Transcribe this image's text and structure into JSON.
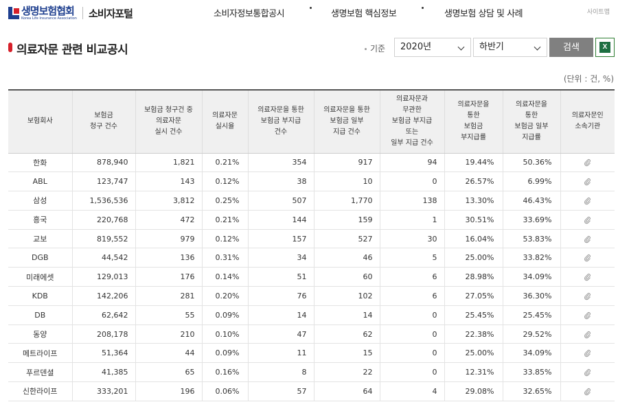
{
  "header": {
    "logo_ko": "생명보험협회",
    "logo_en": "Korea Life Insurance Association",
    "portal": "소비자포털",
    "nav": [
      "소비자정보통합공시",
      "생명보험 핵심정보",
      "생명보험 상담 및 사례"
    ],
    "sitemap": "사이트맵"
  },
  "title": "의료자문 관련 비교공시",
  "filter": {
    "basis_label": "기준",
    "year": "2020년",
    "half": "하반기",
    "search_label": "검색",
    "excel_label": "X"
  },
  "unit": "(단위 : 건, %)",
  "table": {
    "headers": [
      [
        "보험회사"
      ],
      [
        "보험금",
        "청구 건수"
      ],
      [
        "보험금 청구건 중",
        "의료자문",
        "실시 건수"
      ],
      [
        "의료자문",
        "실시율"
      ],
      [
        "의료자문을 통한",
        "보험금 부지급",
        "건수"
      ],
      [
        "의료자문을 통한",
        "보험금 일부",
        "지급 건수"
      ],
      [
        "의료자문과",
        "무관한",
        "보험금 부지급",
        "또는",
        "일부 지급 건수"
      ],
      [
        "의료자문을",
        "통한",
        "보험금",
        "부지급률"
      ],
      [
        "의료자문을",
        "통한",
        "보험금 일부",
        "지급률"
      ],
      [
        "의료자문인",
        "소속기관"
      ]
    ],
    "rows": [
      [
        "한화",
        "878,940",
        "1,821",
        "0.21%",
        "354",
        "917",
        "94",
        "19.44%",
        "50.36%"
      ],
      [
        "ABL",
        "123,747",
        "143",
        "0.12%",
        "38",
        "10",
        "0",
        "26.57%",
        "6.99%"
      ],
      [
        "삼성",
        "1,536,536",
        "3,812",
        "0.25%",
        "507",
        "1,770",
        "138",
        "13.30%",
        "46.43%"
      ],
      [
        "흥국",
        "220,768",
        "472",
        "0.21%",
        "144",
        "159",
        "1",
        "30.51%",
        "33.69%"
      ],
      [
        "교보",
        "819,552",
        "979",
        "0.12%",
        "157",
        "527",
        "30",
        "16.04%",
        "53.83%"
      ],
      [
        "DGB",
        "44,542",
        "136",
        "0.31%",
        "34",
        "46",
        "5",
        "25.00%",
        "33.82%"
      ],
      [
        "미래에셋",
        "129,013",
        "176",
        "0.14%",
        "51",
        "60",
        "6",
        "28.98%",
        "34.09%"
      ],
      [
        "KDB",
        "142,206",
        "281",
        "0.20%",
        "76",
        "102",
        "6",
        "27.05%",
        "36.30%"
      ],
      [
        "DB",
        "62,642",
        "55",
        "0.09%",
        "14",
        "14",
        "0",
        "25.45%",
        "25.45%"
      ],
      [
        "동양",
        "208,178",
        "210",
        "0.10%",
        "47",
        "62",
        "0",
        "22.38%",
        "29.52%"
      ],
      [
        "메트라이프",
        "51,364",
        "44",
        "0.09%",
        "11",
        "15",
        "0",
        "25.00%",
        "34.09%"
      ],
      [
        "푸르덴셜",
        "41,385",
        "65",
        "0.16%",
        "8",
        "22",
        "0",
        "12.31%",
        "33.85%"
      ],
      [
        "신한라이프",
        "333,201",
        "196",
        "0.06%",
        "57",
        "64",
        "4",
        "29.08%",
        "32.65%"
      ]
    ]
  }
}
